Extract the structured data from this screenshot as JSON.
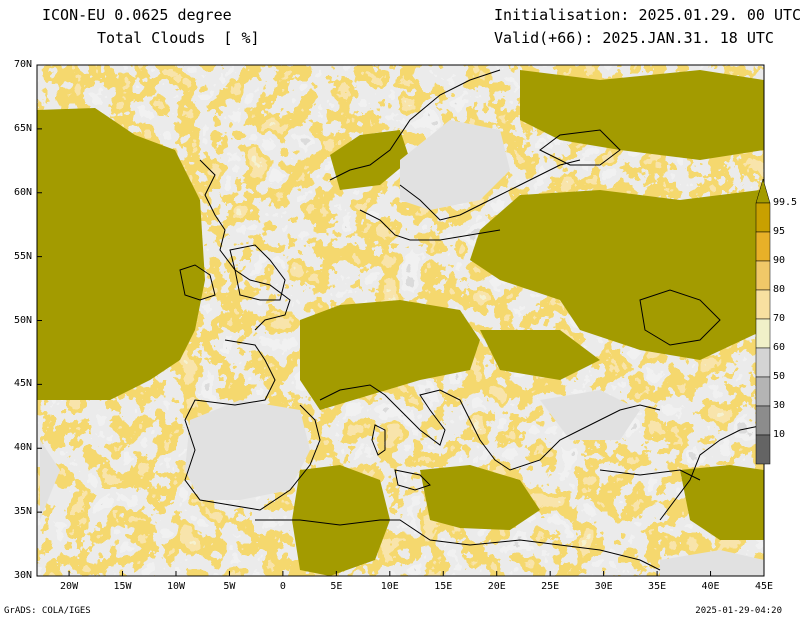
{
  "header": {
    "model": "ICON-EU 0.0625 degree",
    "variable": "Total Clouds  [ %]",
    "initialisation": "Initialisation: 2025.01.29. 00 UTC",
    "valid": "Valid(+66): 2025.JAN.31. 18 UTC"
  },
  "footer": {
    "software": "GrADS: COLA/IGES",
    "timestamp": "2025-01-29-04:20"
  },
  "map": {
    "lat_labels": [
      "70N",
      "65N",
      "60N",
      "55N",
      "50N",
      "45N",
      "40N",
      "35N",
      "30N"
    ],
    "lon_labels": [
      "20W",
      "15W",
      "10W",
      "5W",
      "0",
      "5E",
      "10E",
      "15E",
      "20E",
      "25E",
      "30E",
      "35E",
      "40E",
      "45E"
    ],
    "extent": {
      "lon_min": -23,
      "lon_max": 45,
      "lat_min": 30,
      "lat_max": 70
    }
  },
  "legend": {
    "levels": [
      "99.5",
      "95",
      "90",
      "80",
      "70",
      "60",
      "50",
      "30",
      "10"
    ],
    "colors": [
      "#c8a000",
      "#e8b028",
      "#f0c868",
      "#f8e0a0",
      "#f0f0c8",
      "#d4d4d4",
      "#b4b4b4",
      "#8c8c8c",
      "#646464"
    ],
    "overcast_color": "#a39b00",
    "clear_color": "#e1e1e1"
  }
}
